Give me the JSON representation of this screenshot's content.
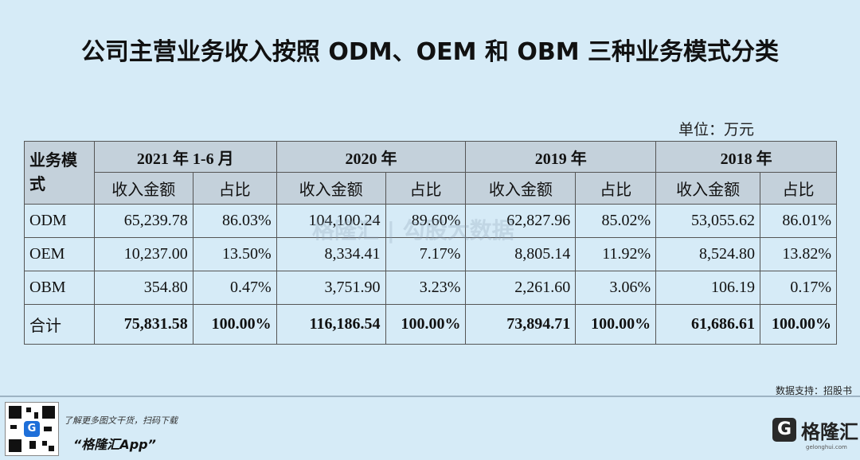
{
  "title": "公司主营业务收入按照 ODM、OEM 和 OBM 三种业务模式分类",
  "unit": "单位：万元",
  "table": {
    "mode_header": "业务模式",
    "periods": [
      "2021 年 1-6 月",
      "2020 年",
      "2019 年",
      "2018 年"
    ],
    "sub_amount": "收入金额",
    "sub_ratio": "占比",
    "rows": [
      {
        "label": "ODM",
        "cells": [
          "65,239.78",
          "86.03%",
          "104,100.24",
          "89.60%",
          "62,827.96",
          "85.02%",
          "53,055.62",
          "86.01%"
        ]
      },
      {
        "label": "OEM",
        "cells": [
          "10,237.00",
          "13.50%",
          "8,334.41",
          "7.17%",
          "8,805.14",
          "11.92%",
          "8,524.80",
          "13.82%"
        ]
      },
      {
        "label": "OBM",
        "cells": [
          "354.80",
          "0.47%",
          "3,751.90",
          "3.23%",
          "2,261.60",
          "3.06%",
          "106.19",
          "0.17%"
        ]
      },
      {
        "label": "合计",
        "cells": [
          "75,831.58",
          "100.00%",
          "116,186.54",
          "100.00%",
          "73,894.71",
          "100.00%",
          "61,686.61",
          "100.00%"
        ]
      }
    ]
  },
  "watermark": "格隆汇 | 勾股大数据",
  "source": "数据支持：招股书",
  "promo_text": "了解更多图文干货，扫码下载",
  "promo_app": "“格隆汇App”",
  "logo_mark": "G",
  "logo_text": "格隆汇",
  "logo_sub": "gelonghui.com",
  "qr_center": "G"
}
